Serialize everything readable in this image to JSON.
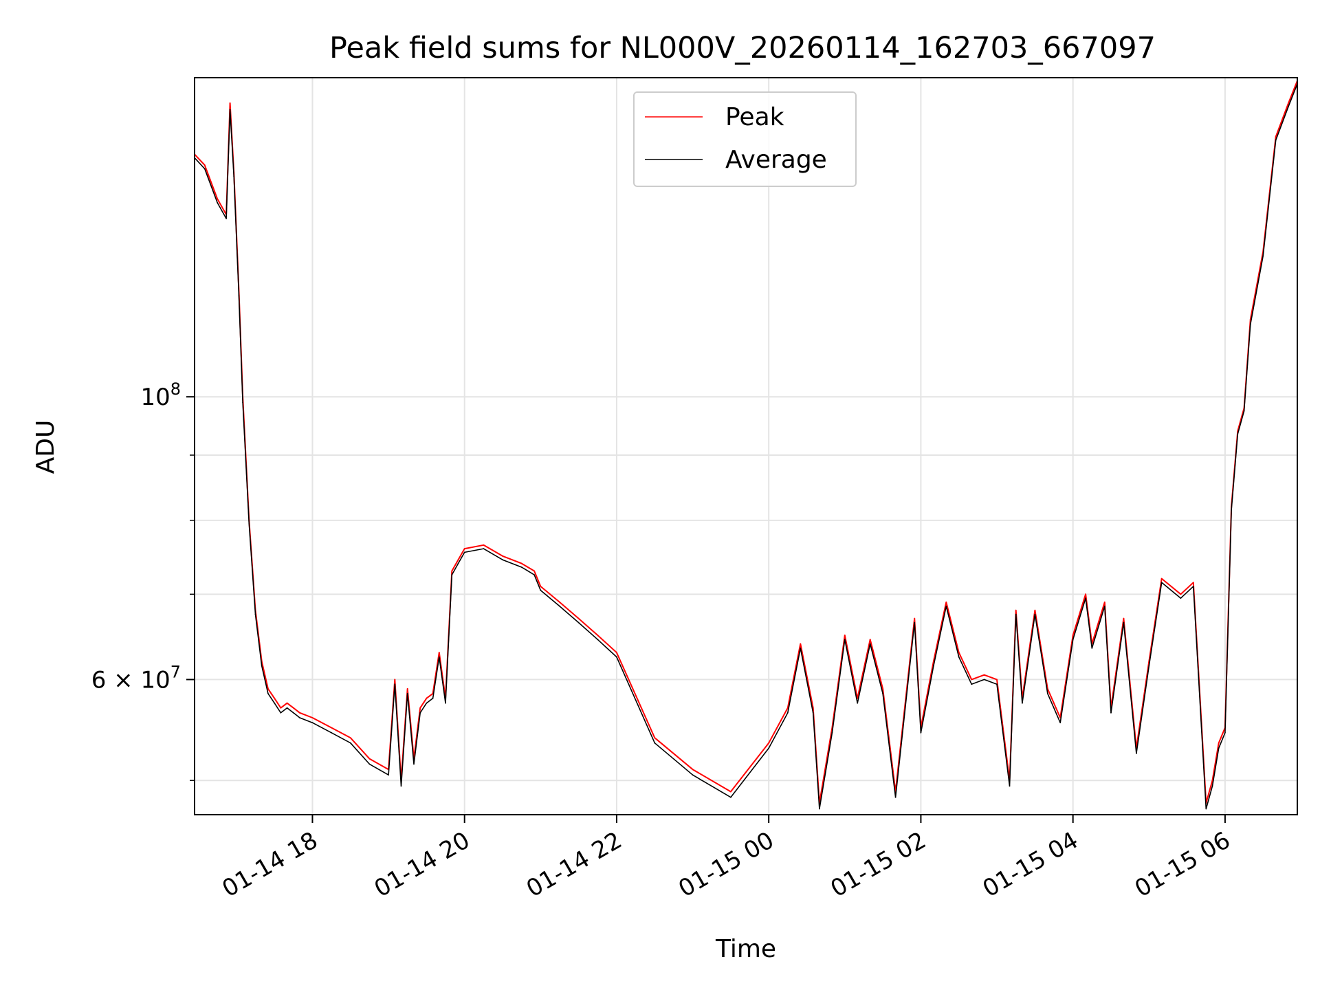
{
  "chart_data": {
    "type": "line",
    "title": "Peak field sums for NL000V_20260114_162703_667097",
    "xlabel": "Time",
    "ylabel": "ADU",
    "yscale": "log",
    "ylim": [
      47000000,
      178000000
    ],
    "xlim": [
      "01-14 16:27",
      "01-15 06:57"
    ],
    "grid": true,
    "legend_position": "top-center",
    "x_ticks": [
      {
        "at": "01-14 18:00",
        "label": "01-14 18"
      },
      {
        "at": "01-14 20:00",
        "label": "01-14 20"
      },
      {
        "at": "01-14 22:00",
        "label": "01-14 22"
      },
      {
        "at": "01-15 00:00",
        "label": "01-15 00"
      },
      {
        "at": "01-15 02:00",
        "label": "01-15 02"
      },
      {
        "at": "01-15 04:00",
        "label": "01-15 04"
      },
      {
        "at": "01-15 06:00",
        "label": "01-15 06"
      }
    ],
    "y_major_ticks": [
      {
        "value": 100000000,
        "base": "10",
        "exp": "8"
      },
      {
        "value": 60000000,
        "mant": "6",
        "times": "×",
        "base": "10",
        "exp": "7"
      }
    ],
    "y_minor_ticks": [
      50000000,
      70000000,
      80000000,
      90000000
    ],
    "x": [
      "01-14 16:27",
      "01-14 16:35",
      "01-14 16:45",
      "01-14 16:52",
      "01-14 16:55",
      "01-14 16:58",
      "01-14 17:02",
      "01-14 17:05",
      "01-14 17:10",
      "01-14 17:15",
      "01-14 17:20",
      "01-14 17:25",
      "01-14 17:30",
      "01-14 17:35",
      "01-14 17:40",
      "01-14 17:45",
      "01-14 17:50",
      "01-14 18:00",
      "01-14 18:15",
      "01-14 18:30",
      "01-14 18:45",
      "01-14 19:00",
      "01-14 19:05",
      "01-14 19:10",
      "01-14 19:15",
      "01-14 19:20",
      "01-14 19:25",
      "01-14 19:30",
      "01-14 19:35",
      "01-14 19:40",
      "01-14 19:45",
      "01-14 19:50",
      "01-14 19:55",
      "01-14 20:00",
      "01-14 20:15",
      "01-14 20:30",
      "01-14 20:45",
      "01-14 20:55",
      "01-14 21:00",
      "01-14 21:15",
      "01-14 21:30",
      "01-14 21:45",
      "01-14 22:00",
      "01-14 22:30",
      "01-14 23:00",
      "01-14 23:30",
      "01-15 00:00",
      "01-15 00:15",
      "01-15 00:25",
      "01-15 00:35",
      "01-15 00:40",
      "01-15 00:50",
      "01-15 01:00",
      "01-15 01:10",
      "01-15 01:20",
      "01-15 01:30",
      "01-15 01:40",
      "01-15 01:55",
      "01-15 02:00",
      "01-15 02:10",
      "01-15 02:20",
      "01-15 02:30",
      "01-15 02:40",
      "01-15 02:50",
      "01-15 03:00",
      "01-15 03:10",
      "01-15 03:15",
      "01-15 03:20",
      "01-15 03:30",
      "01-15 03:40",
      "01-15 03:50",
      "01-15 04:00",
      "01-15 04:10",
      "01-15 04:15",
      "01-15 04:25",
      "01-15 04:30",
      "01-15 04:40",
      "01-15 04:50",
      "01-15 05:00",
      "01-15 05:10",
      "01-15 05:25",
      "01-15 05:35",
      "01-15 05:45",
      "01-15 05:50",
      "01-15 05:55",
      "01-15 06:00",
      "01-15 06:05",
      "01-15 06:10",
      "01-15 06:15",
      "01-15 06:20",
      "01-15 06:30",
      "01-15 06:40",
      "01-15 06:50",
      "01-15 06:57"
    ],
    "series": [
      {
        "name": "Peak",
        "color": "#ff0000",
        "values": [
          155000000,
          152000000,
          143000000,
          139000000,
          170000000,
          150000000,
          121000000,
          100000000,
          80000000,
          68000000,
          62000000,
          59000000,
          58000000,
          57000000,
          57500000,
          57000000,
          56500000,
          56000000,
          55000000,
          54000000,
          52000000,
          51000000,
          60000000,
          50000000,
          59000000,
          52000000,
          57000000,
          58000000,
          58500000,
          63000000,
          58000000,
          73000000,
          74500000,
          76000000,
          76500000,
          75000000,
          74000000,
          73000000,
          71000000,
          69000000,
          67000000,
          65000000,
          63000000,
          54000000,
          51000000,
          49000000,
          53500000,
          57000000,
          64000000,
          57000000,
          48000000,
          55000000,
          65000000,
          58000000,
          64500000,
          59000000,
          49000000,
          67000000,
          55000000,
          62000000,
          69000000,
          63000000,
          60000000,
          60500000,
          60000000,
          50000000,
          68000000,
          58000000,
          68000000,
          59000000,
          56000000,
          65000000,
          70000000,
          64000000,
          69000000,
          57000000,
          67000000,
          53000000,
          62000000,
          72000000,
          70000000,
          71500000,
          48000000,
          50000000,
          53500000,
          55000000,
          82000000,
          94000000,
          98000000,
          115000000,
          130000000,
          160000000,
          170000000,
          177000000
        ]
      },
      {
        "name": "Average",
        "color": "#000000",
        "values": [
          154000000,
          151000000,
          142000000,
          138000000,
          168000000,
          149000000,
          120000000,
          99000000,
          79500000,
          67500000,
          61500000,
          58500000,
          57500000,
          56500000,
          57000000,
          56500000,
          56000000,
          55500000,
          54500000,
          53500000,
          51500000,
          50500000,
          59500000,
          49500000,
          58500000,
          51500000,
          56500000,
          57500000,
          58000000,
          62500000,
          57500000,
          72500000,
          74000000,
          75500000,
          76000000,
          74500000,
          73500000,
          72500000,
          70500000,
          68500000,
          66500000,
          64500000,
          62500000,
          53500000,
          50500000,
          48500000,
          53000000,
          56500000,
          63500000,
          56500000,
          47500000,
          54500000,
          64500000,
          57500000,
          64000000,
          58500000,
          48500000,
          66500000,
          54500000,
          61500000,
          68500000,
          62500000,
          59500000,
          60000000,
          59500000,
          49500000,
          67500000,
          57500000,
          67500000,
          58500000,
          55500000,
          64500000,
          69500000,
          63500000,
          68500000,
          56500000,
          66500000,
          52500000,
          61500000,
          71500000,
          69500000,
          71000000,
          47500000,
          49500000,
          53000000,
          54500000,
          81500000,
          93500000,
          97500000,
          114000000,
          129000000,
          159000000,
          169000000,
          176000000
        ]
      }
    ]
  }
}
